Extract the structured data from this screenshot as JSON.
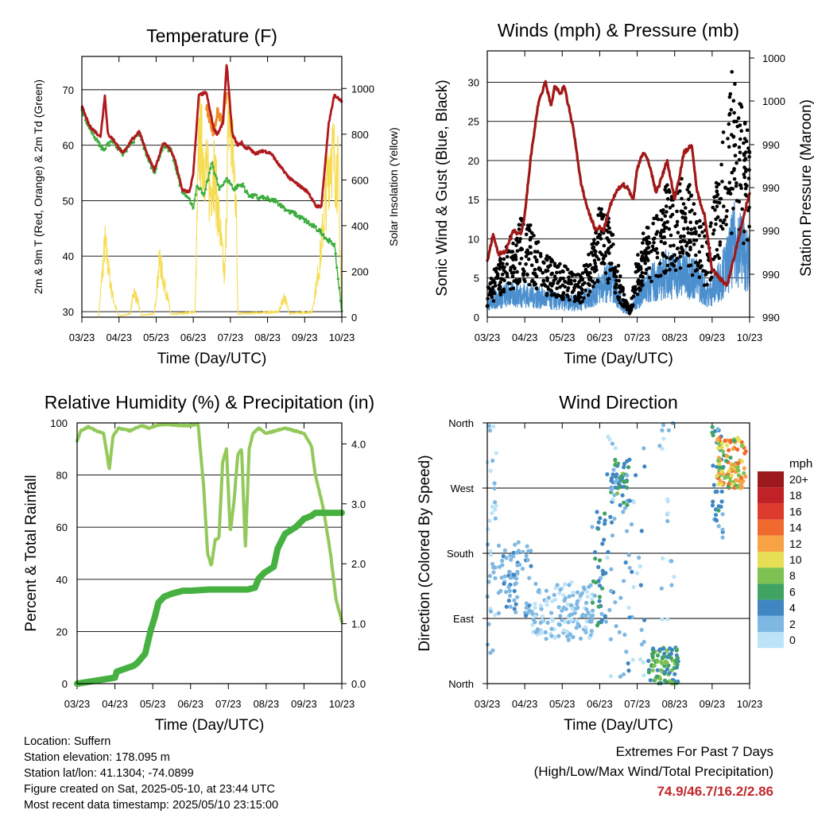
{
  "colors": {
    "temp2m": "#b0191e",
    "temp9m": "#f08a24",
    "dewpoint": "#3aac3a",
    "solar": "#f5dc52",
    "wind": "#4b8fcf",
    "gust": "#000000",
    "pressure": "#a01818",
    "rh": "#93c95a",
    "rain": "#46b041"
  },
  "footer": {
    "location": "Location: Suffern",
    "elevation": "Station elevation: 178.095 m",
    "latlon": "Station lat/lon: 41.1304; -74.0899",
    "created": "Figure created on Sat, 2025-05-10, at 23:44 UTC",
    "recent": "Most recent data timestamp: 2025/05/10 23:15:00"
  },
  "extremes": {
    "line1": "Extremes For Past 7 Days",
    "line2": "(High/Low/Max Wind/Total Precipitation)",
    "values": "74.9/46.7/16.2/2.86"
  },
  "chart_data": [
    {
      "id": "temperature",
      "type": "line",
      "title": "Temperature (F)",
      "xlabel": "Time (Day/UTC)",
      "ylabel": "2m & 9m T (Red, Orange) & 2m Td (Green)",
      "y2label": "Solar Insolation (Yellow)",
      "xlim": [
        0,
        7
      ],
      "xticks": [
        "03/23",
        "04/23",
        "05/23",
        "06/23",
        "07/23",
        "08/23",
        "09/23",
        "10/23"
      ],
      "ylim": [
        29,
        76
      ],
      "yticks": [
        30,
        40,
        50,
        60,
        70
      ],
      "y2lim": [
        0,
        1140
      ],
      "y2ticks": [
        0,
        200,
        400,
        600,
        800,
        1000
      ],
      "series": [
        {
          "key": "temp2m",
          "x": [
            0,
            0.2,
            0.5,
            0.62,
            0.7,
            0.85,
            1.1,
            1.35,
            1.55,
            1.75,
            1.95,
            2.2,
            2.35,
            2.5,
            2.7,
            2.9,
            3.0,
            3.15,
            3.35,
            3.55,
            3.65,
            3.8,
            3.9,
            4.05,
            4.2,
            4.3,
            4.4,
            4.5,
            4.65,
            4.9,
            5.1,
            5.3,
            5.6,
            5.9,
            6.1,
            6.3,
            6.45,
            6.65,
            6.8,
            7.0
          ],
          "y": [
            67,
            63.5,
            61.5,
            69,
            62,
            61,
            58.5,
            61,
            62.5,
            58.5,
            55.5,
            60.5,
            59.5,
            57.5,
            52,
            51.5,
            55,
            69,
            69.5,
            63,
            62,
            64,
            74.8,
            62,
            60,
            60.5,
            59.5,
            59.5,
            58.5,
            59,
            58.5,
            56.5,
            54,
            52.5,
            51.5,
            49,
            49,
            64,
            69,
            68
          ]
        },
        {
          "key": "temp9m",
          "x": [
            3.35,
            3.55,
            3.65,
            3.8,
            3.9
          ],
          "y": [
            67,
            62,
            66,
            64,
            70
          ]
        },
        {
          "key": "dewpoint",
          "x": [
            0,
            0.2,
            0.5,
            0.6,
            0.8,
            1.1,
            1.35,
            1.55,
            1.75,
            1.95,
            2.2,
            2.4,
            2.7,
            2.9,
            3.0,
            3.1,
            3.3,
            3.5,
            3.7,
            3.9,
            4.1,
            4.3,
            4.5,
            4.8,
            5.2,
            5.6,
            5.9,
            6.2,
            6.5,
            6.6,
            6.8,
            6.9,
            7.0
          ],
          "y": [
            66.5,
            63,
            60,
            59,
            61,
            58.5,
            60.5,
            62,
            58,
            55,
            60,
            59,
            51.5,
            50,
            48.5,
            53,
            51,
            57,
            52,
            54,
            52,
            53,
            51,
            50.5,
            50,
            48,
            47,
            45.5,
            44,
            43,
            42,
            36,
            30
          ]
        },
        {
          "key": "solar",
          "x": [
            0.45,
            0.55,
            0.62,
            0.7,
            0.8,
            0.9,
            1.0,
            1.3,
            1.4,
            1.5,
            1.6,
            1.95,
            2.1,
            2.2,
            2.3,
            2.4,
            3.05,
            3.15,
            3.3,
            3.45,
            3.55,
            3.85,
            3.95,
            4.05,
            4.15,
            4.2,
            5.3,
            5.45,
            5.6,
            6.2,
            6.4,
            6.7,
            6.9,
            7.0
          ],
          "y": [
            10,
            250,
            420,
            300,
            150,
            60,
            5,
            20,
            150,
            90,
            10,
            20,
            330,
            200,
            120,
            15,
            30,
            1000,
            900,
            700,
            850,
            200,
            1150,
            950,
            700,
            20,
            30,
            120,
            20,
            30,
            300,
            950,
            800,
            10
          ]
        }
      ]
    },
    {
      "id": "winds",
      "type": "line",
      "title": "Winds (mph) & Pressure (mb)",
      "xlabel": "Time (Day/UTC)",
      "ylabel": "Sonic Wind & Gust (Blue, Black)",
      "y2label": "Station Pressure (Maroon)",
      "xlim": [
        0,
        7
      ],
      "xticks": [
        "03/23",
        "04/23",
        "05/23",
        "06/23",
        "07/23",
        "08/23",
        "09/23",
        "10/23"
      ],
      "ylim": [
        0,
        34
      ],
      "yticks": [
        0,
        5,
        10,
        15,
        20,
        25,
        30
      ],
      "y2ticks": [
        "990",
        "990",
        "990",
        "990",
        "990",
        "1000",
        "1000",
        "1000"
      ],
      "series": [
        {
          "key": "pressure",
          "x": [
            0,
            0.15,
            0.3,
            0.5,
            0.7,
            0.9,
            1.0,
            1.15,
            1.35,
            1.55,
            1.7,
            1.8,
            1.95,
            2.05,
            2.3,
            2.5,
            2.7,
            2.9,
            3.0,
            3.1,
            3.3,
            3.45,
            3.6,
            3.75,
            3.9,
            4.0,
            4.15,
            4.3,
            4.5,
            4.6,
            4.8,
            5.0,
            5.25,
            5.45,
            5.6,
            5.8,
            6.0,
            6.2,
            6.4,
            6.6,
            6.8,
            7.0
          ],
          "y": [
            7,
            10.5,
            8,
            8.5,
            11,
            10.5,
            13,
            20,
            27,
            30,
            27,
            29.5,
            28.5,
            29.5,
            24,
            17,
            13.5,
            11,
            11.5,
            11,
            14.5,
            16,
            17,
            16.5,
            15,
            19,
            21,
            20,
            16,
            17,
            20,
            15,
            21,
            22,
            16,
            13,
            6,
            5,
            4,
            8,
            12,
            16
          ]
        },
        {
          "key": "gust",
          "x": [
            0,
            0.5,
            1.0,
            1.5,
            2.0,
            2.5,
            2.8,
            3.0,
            3.3,
            3.6,
            3.8,
            4.0,
            4.3,
            4.6,
            4.8,
            5.0,
            5.3,
            5.6,
            5.9,
            6.2,
            6.4,
            6.6,
            6.8,
            7.0
          ],
          "y": [
            3,
            7,
            10,
            6,
            5,
            4,
            7,
            11,
            9,
            3,
            1,
            6,
            10,
            10,
            13,
            12,
            14,
            10,
            8,
            15,
            20,
            26,
            22,
            16
          ]
        },
        {
          "key": "wind",
          "x": [
            0,
            0.5,
            1.0,
            1.5,
            2.0,
            2.5,
            2.8,
            3.0,
            3.3,
            3.6,
            3.8,
            4.0,
            4.3,
            4.6,
            4.8,
            5.0,
            5.3,
            5.6,
            5.9,
            6.2,
            6.4,
            6.6,
            6.8,
            7.0
          ],
          "y": [
            2,
            3,
            3,
            2.5,
            2,
            2,
            3,
            4,
            5,
            1.5,
            0.5,
            2.5,
            4.5,
            5,
            6,
            5.5,
            6,
            5,
            3,
            5,
            7,
            10,
            9,
            7
          ]
        }
      ]
    },
    {
      "id": "humidity",
      "type": "line",
      "title": "Relative Humidity (%) & Precipitation (in)",
      "xlabel": "Time (Day/UTC)",
      "ylabel": "Percent & Total Rainfall",
      "xlim": [
        0,
        7
      ],
      "xticks": [
        "03/23",
        "04/23",
        "05/23",
        "06/23",
        "07/23",
        "08/23",
        "09/23",
        "10/23"
      ],
      "ylim": [
        0,
        100
      ],
      "yticks": [
        0,
        20,
        40,
        60,
        80,
        100
      ],
      "y2lim": [
        0,
        4.35
      ],
      "y2ticks": [
        "0.0",
        "1.0",
        "2.0",
        "3.0",
        "4.0"
      ],
      "series": [
        {
          "key": "rh",
          "x": [
            0,
            0.1,
            0.3,
            0.5,
            0.7,
            0.8,
            0.85,
            0.95,
            1.1,
            1.4,
            1.7,
            1.9,
            2.1,
            2.4,
            2.7,
            3.0,
            3.2,
            3.35,
            3.45,
            3.55,
            3.65,
            3.75,
            3.85,
            3.95,
            4.05,
            4.15,
            4.25,
            4.35,
            4.45,
            4.55,
            4.65,
            4.8,
            5.0,
            5.5,
            6.0,
            6.2,
            6.3,
            6.5,
            6.7,
            6.85,
            7.0
          ],
          "y": [
            93,
            97,
            98.5,
            97,
            96,
            87,
            82,
            95,
            98,
            97,
            99,
            98,
            99,
            99.5,
            99,
            99,
            99.5,
            75,
            50,
            45,
            55,
            56,
            85,
            90,
            58,
            70,
            88,
            90,
            52,
            90,
            96,
            98,
            96,
            98,
            96,
            91,
            80,
            68,
            50,
            32,
            24
          ]
        },
        {
          "key": "rain",
          "x": [
            0,
            0.5,
            1.0,
            1.05,
            1.5,
            1.6,
            1.8,
            1.95,
            2.05,
            2.15,
            2.3,
            2.5,
            2.8,
            3.0,
            3.5,
            4.0,
            4.5,
            4.7,
            4.8,
            4.95,
            5.2,
            5.3,
            5.5,
            5.8,
            6.0,
            6.2,
            6.3,
            6.5,
            7.0
          ],
          "y": [
            0,
            0.05,
            0.1,
            0.2,
            0.3,
            0.35,
            0.5,
            0.9,
            1.1,
            1.35,
            1.45,
            1.5,
            1.55,
            1.55,
            1.57,
            1.57,
            1.57,
            1.6,
            1.75,
            1.85,
            1.95,
            2.25,
            2.5,
            2.62,
            2.75,
            2.8,
            2.85,
            2.85,
            2.85
          ]
        }
      ]
    },
    {
      "id": "direction",
      "type": "scatter",
      "title": "Wind Direction",
      "xlabel": "Time (Day/UTC)",
      "ylabel": "Direction (Colored By Speed)",
      "xlim": [
        0,
        7
      ],
      "xticks": [
        "03/23",
        "04/23",
        "05/23",
        "06/23",
        "07/23",
        "08/23",
        "09/23",
        "10/23"
      ],
      "ylim": [
        0,
        360
      ],
      "yticks": [
        "North",
        "East",
        "South",
        "West",
        "North"
      ],
      "legend": {
        "title": "mph",
        "labels": [
          "20+",
          "18",
          "16",
          "14",
          "12",
          "10",
          "8",
          "6",
          "4",
          "2",
          "0"
        ],
        "colors": [
          "#9c1a1d",
          "#c12228",
          "#dd3b2b",
          "#f06a30",
          "#f7a245",
          "#e6df55",
          "#7cc152",
          "#3fa364",
          "#3f86c3",
          "#7db7e2",
          "#bce3f7"
        ]
      },
      "clusters": [
        {
          "x": [
            0.0,
            0.25
          ],
          "y": [
            40,
            360
          ],
          "spd": [
            0,
            3
          ],
          "n": 35
        },
        {
          "x": [
            0.3,
            1.2
          ],
          "y": [
            90,
            200
          ],
          "spd": [
            1,
            4
          ],
          "n": 70
        },
        {
          "x": [
            1.2,
            2.8
          ],
          "y": [
            60,
            140
          ],
          "spd": [
            0,
            3
          ],
          "n": 140
        },
        {
          "x": [
            2.8,
            3.2
          ],
          "y": [
            80,
            240
          ],
          "spd": [
            2,
            6
          ],
          "n": 40
        },
        {
          "x": [
            3.3,
            3.8
          ],
          "y": [
            240,
            310
          ],
          "spd": [
            3,
            8
          ],
          "n": 45
        },
        {
          "x": [
            3.2,
            4.2
          ],
          "y": [
            0,
            360
          ],
          "spd": [
            0,
            4
          ],
          "n": 70
        },
        {
          "x": [
            4.3,
            5.1
          ],
          "y": [
            0,
            50
          ],
          "spd": [
            3,
            8
          ],
          "n": 90
        },
        {
          "x": [
            4.6,
            5.0
          ],
          "y": [
            60,
            360
          ],
          "spd": [
            0,
            3
          ],
          "n": 20
        },
        {
          "x": [
            6.0,
            6.3
          ],
          "y": [
            200,
            360
          ],
          "spd": [
            2,
            6
          ],
          "n": 35
        },
        {
          "x": [
            6.1,
            6.9
          ],
          "y": [
            270,
            340
          ],
          "spd": [
            6,
            15
          ],
          "n": 110
        }
      ]
    }
  ]
}
